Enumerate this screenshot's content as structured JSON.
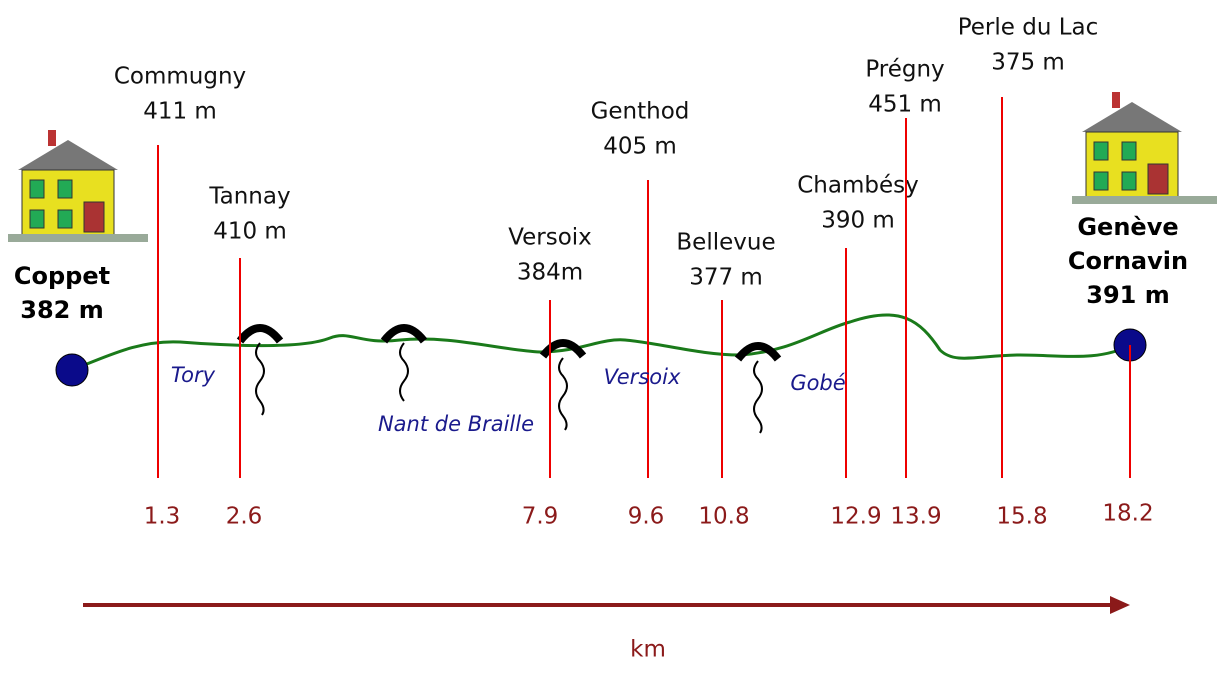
{
  "start": {
    "name": "Coppet",
    "altitude": "382 m"
  },
  "end": {
    "name_lines": [
      "Genève",
      "Cornavin"
    ],
    "altitude": "391 m",
    "km": 18.2
  },
  "stations": [
    {
      "name": "Commugny",
      "altitude": "411 m",
      "km": 1.3
    },
    {
      "name": "Tannay",
      "altitude": "410 m",
      "km": 2.6
    },
    {
      "name": "Versoix",
      "altitude": "384m",
      "km": 7.9
    },
    {
      "name": "Genthod",
      "altitude": "405 m",
      "km": 9.6
    },
    {
      "name": "Bellevue",
      "altitude": "377 m",
      "km": 10.8
    },
    {
      "name": "Chambésy",
      "altitude": "390 m",
      "km": 12.9
    },
    {
      "name": "Prégny",
      "altitude": "451 m",
      "km": 13.9
    },
    {
      "name": "Perle du Lac",
      "altitude": "375 m",
      "km": 15.8
    }
  ],
  "streams": [
    "Tory",
    "Nant de Braille",
    "Versoix",
    "Gobé"
  ],
  "axis_label": "km"
}
